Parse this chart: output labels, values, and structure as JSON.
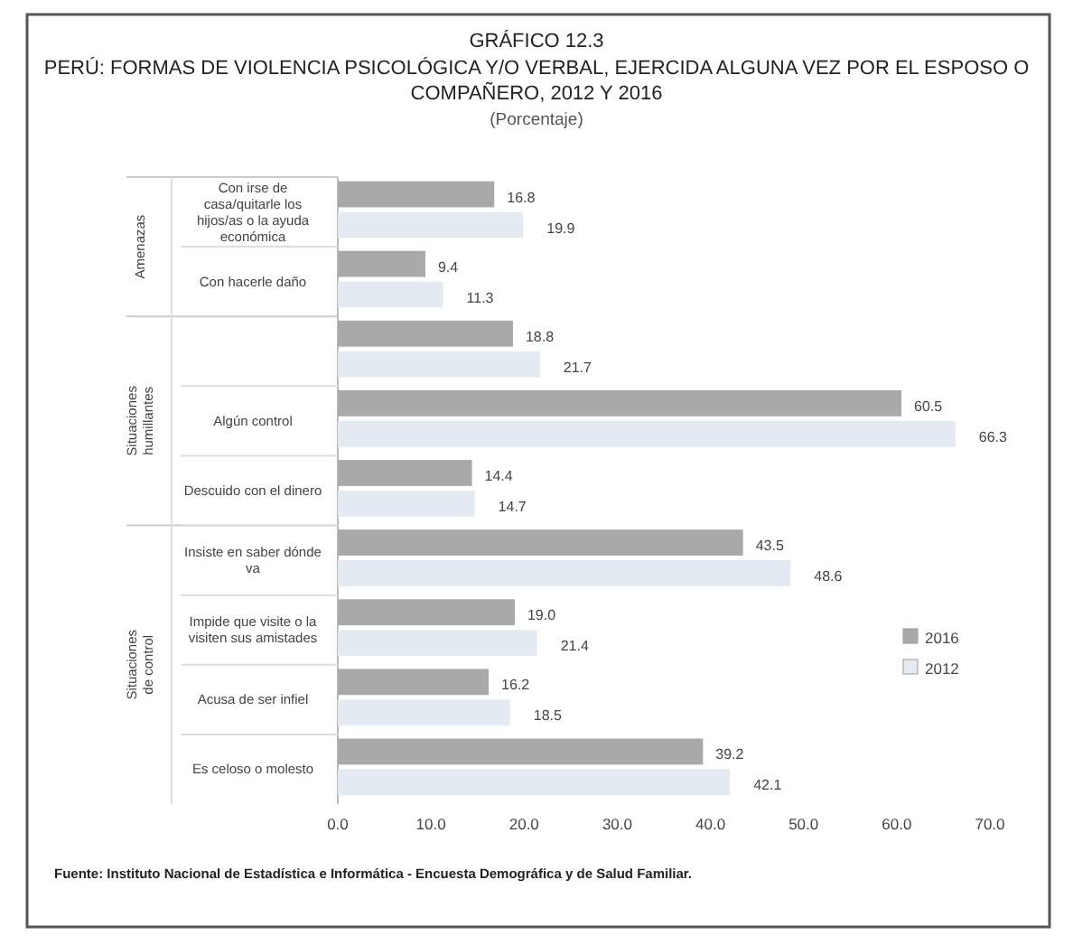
{
  "chart_data": {
    "type": "bar",
    "orientation": "horizontal",
    "title": "GRÁFICO 12.3",
    "subtitle": "PERÚ: FORMAS DE VIOLENCIA PSICOLÓGICA Y/O VERBAL, EJERCIDA ALGUNA VEZ POR EL ESPOSO O COMPAÑERO, 2012 Y 2016",
    "categories": [
      "Con irse de casa/quitarle los hijos/as o la ayuda económica",
      "Con hacerle daño",
      null,
      "Algún control",
      "Descuido con el dinero",
      "Insiste en saber dónde va",
      "Impide que visite o la visiten sus amistades",
      "Acusa de ser infiel",
      "Es celoso o molesto"
    ],
    "series": [
      {
        "name": "2016",
        "color": "#a9a9a9",
        "values": [
          16.8,
          9.4,
          18.8,
          60.5,
          14.4,
          43.5,
          19.0,
          16.2,
          39.2
        ]
      },
      {
        "name": "2012",
        "color": "#e3eaf1",
        "values": [
          19.9,
          11.3,
          21.7,
          66.3,
          14.7,
          48.6,
          21.4,
          18.5,
          42.1
        ]
      }
    ],
    "value_labels": [
      [
        "16.8",
        "9.4",
        "18.8",
        "60.5",
        "14.4",
        "43.5",
        "19.0",
        "16.2",
        "39.2"
      ],
      [
        "19.9",
        "11.3",
        "21.7",
        "66.3",
        "14.7",
        "48.6",
        "21.4",
        "18.5",
        "42.1"
      ]
    ],
    "xlim": [
      0,
      70
    ],
    "xticks": [
      {
        "value": 0,
        "label": "0.0"
      },
      {
        "value": 10,
        "label": "10.0"
      },
      {
        "value": 20,
        "label": "20.0"
      },
      {
        "value": 30,
        "label": "30.0"
      },
      {
        "value": 40,
        "label": "40.0"
      },
      {
        "value": 50,
        "label": "50.0"
      },
      {
        "value": 60,
        "label": "60.0"
      },
      {
        "value": 70,
        "label": "70.0"
      }
    ],
    "grid": false,
    "legend": "right",
    "annotations": [
      "(Porcentaje)",
      "Amenazas",
      "Situaciones humillantes",
      "Situaciones de control",
      "Fuente: Instituto Nacional de Estadística e Informática - Encuesta Demográfica y de Salud Familiar."
    ]
  }
}
